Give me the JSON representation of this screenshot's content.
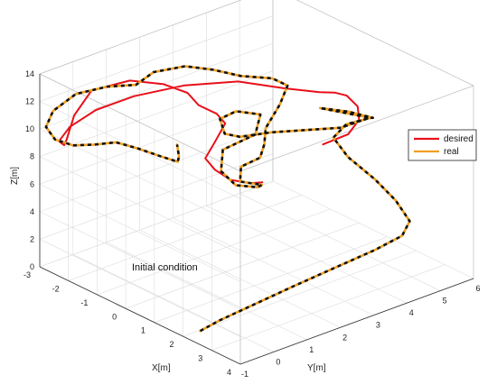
{
  "chart_data": {
    "type": "line",
    "projection": "3d",
    "xlabel": "X[m]",
    "ylabel": "Y[m]",
    "zlabel": "Z[m]",
    "xlim": [
      -3,
      4
    ],
    "ylim": [
      -1,
      6
    ],
    "zlim": [
      0,
      14
    ],
    "x_ticks": [
      "-3",
      "-2",
      "-1",
      "0",
      "1",
      "2",
      "3",
      "4"
    ],
    "y_ticks": [
      "-1",
      "0",
      "1",
      "2",
      "3",
      "4",
      "5",
      "6"
    ],
    "z_ticks": [
      "0",
      "2",
      "4",
      "6",
      "8",
      "10",
      "12",
      "14"
    ],
    "grid": true,
    "legend_position": "right",
    "annotation": "Initial condition",
    "series": [
      {
        "name": "desired",
        "color": "#e8101a",
        "style": "solid",
        "points": [
          [
            2.0,
            3.2,
            10.2
          ],
          [
            2.3,
            3.7,
            10.8
          ],
          [
            2.1,
            4.2,
            11.2
          ],
          [
            1.7,
            4.5,
            11.5
          ],
          [
            1.2,
            4.6,
            11.7
          ],
          [
            0.9,
            4.5,
            11.7
          ],
          [
            0.6,
            4.3,
            11.6
          ],
          [
            0.2,
            3.6,
            12.1
          ],
          [
            -0.5,
            2.8,
            12.6
          ],
          [
            -1.2,
            1.8,
            12.5
          ],
          [
            -1.8,
            0.8,
            12.0
          ],
          [
            -2.2,
            0.0,
            11.3
          ],
          [
            -2.3,
            -0.7,
            10.6
          ],
          [
            -2.1,
            -1.2,
            10.2
          ],
          [
            -1.8,
            -1.3,
            10.3
          ],
          [
            -1.6,
            -1.4,
            11.0
          ],
          [
            -1.8,
            -1.0,
            12.2
          ],
          [
            -2.0,
            -0.3,
            13.2
          ],
          [
            -1.6,
            0.5,
            13.6
          ],
          [
            -1.0,
            1.0,
            13.5
          ],
          [
            -0.4,
            1.2,
            13.3
          ],
          [
            0.1,
            1.1,
            13.0
          ],
          [
            0.5,
            1.3,
            12.6
          ],
          [
            0.8,
            1.3,
            12.2
          ],
          [
            0.9,
            0.9,
            11.3
          ],
          [
            0.8,
            0.7,
            10.2
          ],
          [
            0.9,
            0.9,
            9.3
          ],
          [
            1.1,
            1.2,
            8.5
          ],
          [
            1.3,
            1.6,
            8.1
          ],
          [
            1.4,
            1.9,
            8.0
          ]
        ]
      },
      {
        "name": "real",
        "color": "#f0a020",
        "style": "dashed (black/orange)",
        "points": [
          [
            2.6,
            -1.0,
            1.0
          ],
          [
            2.8,
            -0.6,
            1.6
          ],
          [
            3.1,
            0.3,
            2.4
          ],
          [
            3.3,
            1.2,
            3.0
          ],
          [
            3.5,
            2.3,
            3.6
          ],
          [
            3.6,
            3.4,
            4.0
          ],
          [
            3.6,
            4.2,
            4.3
          ],
          [
            3.4,
            4.6,
            4.8
          ],
          [
            2.8,
            4.7,
            5.6
          ],
          [
            2.2,
            4.6,
            6.6
          ],
          [
            1.6,
            4.3,
            7.9
          ],
          [
            1.2,
            4.2,
            9.0
          ],
          [
            1.3,
            4.5,
            9.8
          ],
          [
            1.8,
            4.8,
            10.5
          ],
          [
            2.0,
            4.7,
            10.8
          ],
          [
            1.6,
            4.3,
            11.2
          ],
          [
            1.2,
            3.8,
            11.5
          ],
          [
            1.6,
            4.2,
            11.2
          ],
          [
            2.0,
            4.6,
            10.9
          ],
          [
            1.7,
            4.0,
            10.4
          ],
          [
            0.9,
            2.6,
            10.5
          ],
          [
            0.5,
            2.0,
            10.3
          ],
          [
            0.2,
            1.8,
            10.4
          ],
          [
            -0.2,
            2.0,
            10.9
          ],
          [
            -0.1,
            2.4,
            11.2
          ],
          [
            0.4,
            2.7,
            11.2
          ],
          [
            0.8,
            2.2,
            10.6
          ],
          [
            0.6,
            1.4,
            10.0
          ],
          [
            1.0,
            1.0,
            9.2
          ],
          [
            1.4,
            1.1,
            8.5
          ],
          [
            1.7,
            1.5,
            8.3
          ],
          [
            1.5,
            1.8,
            8.0
          ],
          [
            1.2,
            1.4,
            8.3
          ],
          [
            1.0,
            1.6,
            9.0
          ],
          [
            1.2,
            2.0,
            9.5
          ],
          [
            1.0,
            2.3,
            10.0
          ],
          [
            0.7,
            2.6,
            10.6
          ],
          [
            0.5,
            3.2,
            11.6
          ],
          [
            0.3,
            3.6,
            12.4
          ],
          [
            0.0,
            3.4,
            12.8
          ],
          [
            -0.4,
            2.8,
            13.1
          ],
          [
            -0.8,
            2.3,
            13.6
          ],
          [
            -1.3,
            1.9,
            13.7
          ],
          [
            -1.7,
            1.3,
            13.4
          ],
          [
            -1.5,
            0.6,
            13.3
          ],
          [
            -1.8,
            0.0,
            13.4
          ],
          [
            -2.2,
            -0.6,
            13.0
          ],
          [
            -2.3,
            -1.2,
            12.2
          ],
          [
            -2.2,
            -1.5,
            11.4
          ],
          [
            -2.0,
            -1.4,
            10.6
          ],
          [
            -1.6,
            -1.2,
            10.4
          ],
          [
            -1.2,
            -0.9,
            10.6
          ],
          [
            -0.8,
            -0.6,
            10.9
          ],
          [
            -0.4,
            -0.3,
            10.6
          ],
          [
            0.0,
            0.0,
            10.2
          ],
          [
            0.3,
            0.3,
            9.8
          ],
          [
            0.0,
            0.6,
            9.6
          ],
          [
            -0.3,
            0.8,
            10.0
          ]
        ]
      }
    ]
  }
}
